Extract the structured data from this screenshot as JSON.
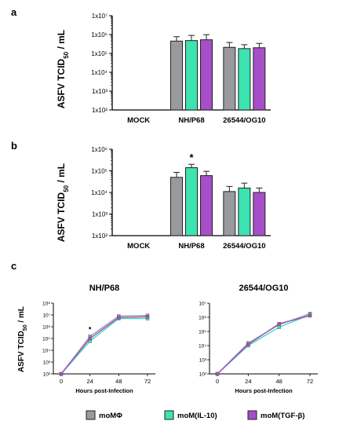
{
  "panels": {
    "a": {
      "letter": "a",
      "ylabel_main": "ASFV TCID",
      "ylabel_sub": "50",
      "ylabel_tail": " / mL"
    },
    "b": {
      "letter": "b",
      "ylabel_main": "ASFV TCID",
      "ylabel_sub": "50",
      "ylabel_tail": " / mL"
    },
    "c": {
      "letter": "c",
      "ylabel_main": "ASFV TCID",
      "ylabel_sub": "50",
      "ylabel_tail": " / mL"
    }
  },
  "colors": {
    "moMPhi": "#9a9a9e",
    "IL10": "#3de3b0",
    "TGFb": "#a64fc8"
  },
  "legend": [
    {
      "key": "moMPhi",
      "label": "moMΦ"
    },
    {
      "key": "IL10",
      "label": "moM(IL-10)"
    },
    {
      "key": "TGFb",
      "label": "moM(TGF-β)"
    }
  ],
  "chart_data": [
    {
      "type": "bar",
      "panel": "a",
      "scale": "log10",
      "categories": [
        "MOCK",
        "NH/P68",
        "26544/OG10"
      ],
      "ylim_exp": [
        2,
        7
      ],
      "ytick_labels": [
        "1x10²",
        "1x10³",
        "1x10⁴",
        "1x10⁵",
        "1x10⁶",
        "1x10⁷"
      ],
      "series": [
        {
          "name": "moMΦ",
          "key": "moMPhi",
          "values": [
            null,
            450000,
            210000
          ],
          "errors": [
            null,
            320000,
            170000
          ]
        },
        {
          "name": "moM(IL-10)",
          "key": "IL10",
          "values": [
            null,
            480000,
            180000
          ],
          "errors": [
            null,
            420000,
            110000
          ]
        },
        {
          "name": "moM(TGF-β)",
          "key": "TGFb",
          "values": [
            null,
            530000,
            200000
          ],
          "errors": [
            null,
            460000,
            140000
          ]
        }
      ],
      "annotations": []
    },
    {
      "type": "bar",
      "panel": "b",
      "scale": "log10",
      "categories": [
        "MOCK",
        "NH/P68",
        "26544/OG10"
      ],
      "ylim_exp": [
        2,
        6
      ],
      "ytick_labels": [
        "1x10²",
        "1x10³",
        "1x10⁴",
        "1x10⁵",
        "1x10⁶"
      ],
      "series": [
        {
          "name": "moMΦ",
          "key": "moMPhi",
          "values": [
            null,
            50000,
            11000
          ],
          "errors": [
            null,
            35000,
            8000
          ]
        },
        {
          "name": "moM(IL-10)",
          "key": "IL10",
          "values": [
            null,
            140000,
            16000
          ],
          "errors": [
            null,
            60000,
            11000
          ]
        },
        {
          "name": "moM(TGF-β)",
          "key": "TGFb",
          "values": [
            null,
            60000,
            10000
          ],
          "errors": [
            null,
            35000,
            6000
          ]
        }
      ],
      "annotations": [
        {
          "category": 1,
          "series": 1,
          "text": "*"
        }
      ]
    },
    {
      "type": "line",
      "panel": "c-left",
      "scale": "log10",
      "title": "NH/P68",
      "xlabel": "Hours post-Infection",
      "x": [
        0,
        24,
        48,
        72
      ],
      "ylim_exp": [
        2,
        8
      ],
      "ytick_labels": [
        "10²",
        "10³",
        "10⁴",
        "10⁵",
        "10⁶",
        "10⁷",
        "10⁸"
      ],
      "series": [
        {
          "name": "moMΦ",
          "key": "moMPhi",
          "values": [
            100,
            150000,
            8000000,
            9000000
          ]
        },
        {
          "name": "moM(IL-10)",
          "key": "IL10",
          "values": [
            100,
            60000,
            5000000,
            5000000
          ]
        },
        {
          "name": "moM(TGF-β)",
          "key": "TGFb",
          "values": [
            100,
            100000,
            6000000,
            7000000
          ]
        }
      ],
      "annotations": [
        {
          "x": 24,
          "text": "*"
        }
      ]
    },
    {
      "type": "line",
      "panel": "c-right",
      "scale": "log10",
      "title": "26544/OG10",
      "xlabel": "Hours post-Infection",
      "x": [
        0,
        24,
        48,
        72
      ],
      "ylim_exp": [
        2,
        7
      ],
      "ytick_labels": [
        "10²",
        "10³",
        "10⁴",
        "10⁵",
        "10⁶",
        "10⁷"
      ],
      "series": [
        {
          "name": "moMΦ",
          "key": "moMPhi",
          "values": [
            100,
            15000,
            300000,
            1800000
          ]
        },
        {
          "name": "moM(IL-10)",
          "key": "IL10",
          "values": [
            100,
            10000,
            200000,
            1500000
          ]
        },
        {
          "name": "moM(TGF-β)",
          "key": "TGFb",
          "values": [
            100,
            12000,
            350000,
            1300000
          ]
        }
      ],
      "annotations": []
    }
  ]
}
